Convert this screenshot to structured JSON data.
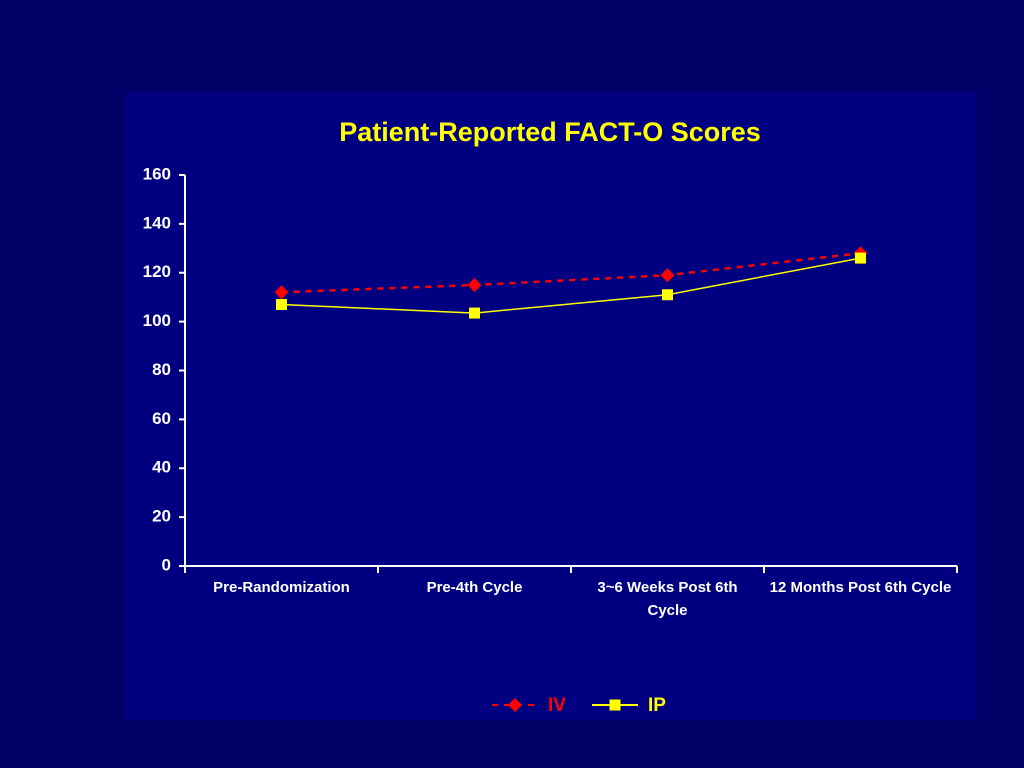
{
  "chart_data": {
    "type": "line",
    "title": "Patient-Reported FACT-O Scores",
    "categories": [
      "Pre-Randomization",
      "Pre-4th Cycle",
      "3~6 Weeks Post 6th Cycle",
      "12 Months Post 6th Cycle"
    ],
    "series": [
      {
        "name": "IV",
        "color": "#ff0000",
        "dash": true,
        "marker": "diamond",
        "values": [
          112,
          115,
          119,
          128
        ]
      },
      {
        "name": "IP",
        "color": "#ffff00",
        "dash": false,
        "marker": "square",
        "values": [
          107,
          103.5,
          111,
          126
        ]
      }
    ],
    "ylim": [
      0,
      160
    ],
    "yticks": [
      0,
      20,
      40,
      60,
      80,
      100,
      120,
      140,
      160
    ],
    "grid": false,
    "legend": "bottom"
  }
}
